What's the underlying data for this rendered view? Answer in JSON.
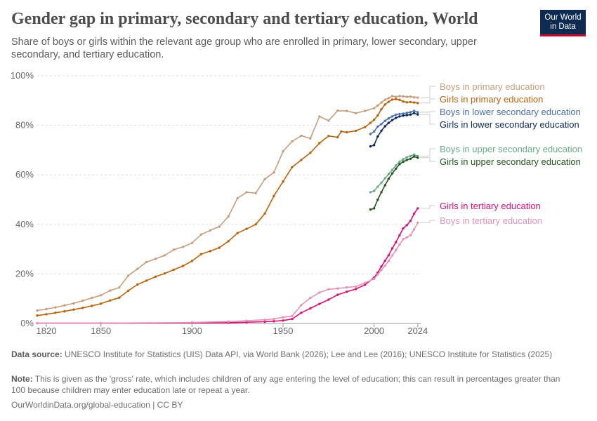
{
  "header": {
    "title": "Gender gap in primary, secondary and tertiary education, World",
    "subtitle": "Share of boys or girls within the relevant age group who are enrolled in primary, lower secondary, upper secondary, and tertiary education.",
    "logo_line1": "Our World",
    "logo_line2": "in Data"
  },
  "footer": {
    "source_label": "Data source:",
    "source_text": "UNESCO Institute for Statistics (UIS) Data API, via World Bank (2026); Lee and Lee (2016); UNESCO Institute for Statistics (2025)",
    "note_label": "Note:",
    "note_text": "This is given as the 'gross' rate, which includes children of any age entering the level of education; this can result in percentages greater than 100 because children may enter education late or repeat a year.",
    "url": "OurWorldinData.org/global-education | CC BY"
  },
  "colors": {
    "boys_primary": "#c69f7e",
    "girls_primary": "#b8640d",
    "boys_lower_secondary": "#4d6fa8",
    "girls_lower_secondary": "#0f2b5e",
    "boys_upper_secondary": "#6aaa8c",
    "girls_upper_secondary": "#24561e",
    "girls_tertiary": "#d6127a",
    "boys_tertiary": "#e295b5",
    "grid": "#dddddd",
    "axis_text": "#666666"
  },
  "chart_data": {
    "type": "line",
    "xlim": [
      1815,
      2026
    ],
    "ylim": [
      0,
      100
    ],
    "x_ticks": [
      "1820",
      "1850",
      "1900",
      "1950",
      "2000",
      "2024"
    ],
    "x_tick_values": [
      1820,
      1850,
      1900,
      1950,
      2000,
      2024
    ],
    "y_ticks": [
      "0%",
      "20%",
      "40%",
      "60%",
      "80%",
      "100%"
    ],
    "y_tick_values": [
      0,
      20,
      40,
      60,
      80,
      100
    ],
    "grid": "horizontal dashed",
    "legend": "right, end of lines",
    "series": [
      {
        "name": "Boys in primary education",
        "color_key": "boys_primary",
        "points": [
          [
            1815,
            5.2
          ],
          [
            1820,
            5.8
          ],
          [
            1825,
            6.5
          ],
          [
            1830,
            7.3
          ],
          [
            1835,
            8.1
          ],
          [
            1840,
            9.2
          ],
          [
            1845,
            10.3
          ],
          [
            1850,
            11.4
          ],
          [
            1855,
            13.3
          ],
          [
            1860,
            14.5
          ],
          [
            1865,
            19.3
          ],
          [
            1870,
            22.0
          ],
          [
            1875,
            24.8
          ],
          [
            1880,
            26.1
          ],
          [
            1885,
            27.5
          ],
          [
            1890,
            29.8
          ],
          [
            1895,
            30.9
          ],
          [
            1900,
            32.5
          ],
          [
            1905,
            35.9
          ],
          [
            1910,
            37.6
          ],
          [
            1915,
            39.1
          ],
          [
            1920,
            43.2
          ],
          [
            1925,
            50.6
          ],
          [
            1930,
            53.0
          ],
          [
            1935,
            52.6
          ],
          [
            1940,
            58.3
          ],
          [
            1945,
            61.0
          ],
          [
            1950,
            69.5
          ],
          [
            1955,
            73.5
          ],
          [
            1960,
            75.8
          ],
          [
            1965,
            74.7
          ],
          [
            1970,
            83.6
          ],
          [
            1975,
            81.9
          ],
          [
            1980,
            85.9
          ],
          [
            1985,
            85.8
          ],
          [
            1990,
            84.9
          ],
          [
            1995,
            85.8
          ],
          [
            2000,
            86.9
          ],
          [
            2002,
            88.0
          ],
          [
            2004,
            89.2
          ],
          [
            2006,
            90.3
          ],
          [
            2008,
            91.0
          ],
          [
            2010,
            91.8
          ],
          [
            2012,
            91.5
          ],
          [
            2014,
            91.8
          ],
          [
            2016,
            91.7
          ],
          [
            2018,
            91.5
          ],
          [
            2020,
            91.6
          ],
          [
            2022,
            91.3
          ],
          [
            2024,
            91.2
          ]
        ]
      },
      {
        "name": "Girls in primary education",
        "color_key": "girls_primary",
        "points": [
          [
            1815,
            3.2
          ],
          [
            1820,
            3.7
          ],
          [
            1825,
            4.3
          ],
          [
            1830,
            4.9
          ],
          [
            1835,
            5.6
          ],
          [
            1840,
            6.3
          ],
          [
            1845,
            7.1
          ],
          [
            1850,
            8.0
          ],
          [
            1855,
            9.3
          ],
          [
            1860,
            10.4
          ],
          [
            1865,
            13.2
          ],
          [
            1870,
            15.7
          ],
          [
            1875,
            17.3
          ],
          [
            1880,
            18.9
          ],
          [
            1885,
            20.2
          ],
          [
            1890,
            21.7
          ],
          [
            1895,
            23.2
          ],
          [
            1900,
            25.2
          ],
          [
            1905,
            28.0
          ],
          [
            1910,
            29.2
          ],
          [
            1915,
            30.6
          ],
          [
            1920,
            33.2
          ],
          [
            1925,
            36.5
          ],
          [
            1930,
            38.2
          ],
          [
            1935,
            40.0
          ],
          [
            1940,
            44.4
          ],
          [
            1945,
            51.5
          ],
          [
            1950,
            57.3
          ],
          [
            1955,
            63.1
          ],
          [
            1960,
            66.0
          ],
          [
            1965,
            68.9
          ],
          [
            1970,
            72.8
          ],
          [
            1975,
            75.7
          ],
          [
            1980,
            75.2
          ],
          [
            1982,
            77.5
          ],
          [
            1985,
            77.2
          ],
          [
            1990,
            77.8
          ],
          [
            1995,
            79.3
          ],
          [
            1998,
            81.0
          ],
          [
            2000,
            82.2
          ],
          [
            2002,
            84.0
          ],
          [
            2004,
            86.5
          ],
          [
            2006,
            88.4
          ],
          [
            2008,
            89.5
          ],
          [
            2010,
            90.4
          ],
          [
            2012,
            90.6
          ],
          [
            2014,
            90.3
          ],
          [
            2016,
            89.6
          ],
          [
            2018,
            89.3
          ],
          [
            2020,
            89.4
          ],
          [
            2022,
            89.2
          ],
          [
            2024,
            89.0
          ]
        ]
      },
      {
        "name": "Boys in lower secondary education",
        "color_key": "boys_lower_secondary",
        "points": [
          [
            1998,
            76.5
          ],
          [
            2000,
            77.5
          ],
          [
            2002,
            79.5
          ],
          [
            2004,
            80.5
          ],
          [
            2006,
            81.8
          ],
          [
            2008,
            82.8
          ],
          [
            2010,
            83.6
          ],
          [
            2012,
            84.3
          ],
          [
            2014,
            84.6
          ],
          [
            2016,
            84.7
          ],
          [
            2018,
            85.0
          ],
          [
            2020,
            85.3
          ],
          [
            2022,
            85.8
          ],
          [
            2024,
            85.3
          ]
        ]
      },
      {
        "name": "Girls in lower secondary education",
        "color_key": "girls_lower_secondary",
        "points": [
          [
            1998,
            71.5
          ],
          [
            2000,
            72.0
          ],
          [
            2002,
            75.5
          ],
          [
            2004,
            77.8
          ],
          [
            2006,
            79.6
          ],
          [
            2008,
            81.0
          ],
          [
            2010,
            82.1
          ],
          [
            2012,
            83.0
          ],
          [
            2014,
            83.6
          ],
          [
            2016,
            83.9
          ],
          [
            2018,
            84.1
          ],
          [
            2020,
            84.3
          ],
          [
            2022,
            84.9
          ],
          [
            2024,
            84.4
          ]
        ]
      },
      {
        "name": "Boys in upper secondary education",
        "color_key": "boys_upper_secondary",
        "points": [
          [
            1998,
            53.0
          ],
          [
            2000,
            53.5
          ],
          [
            2002,
            55.2
          ],
          [
            2004,
            56.8
          ],
          [
            2006,
            58.6
          ],
          [
            2008,
            60.3
          ],
          [
            2010,
            62.0
          ],
          [
            2012,
            63.8
          ],
          [
            2014,
            65.3
          ],
          [
            2016,
            66.3
          ],
          [
            2018,
            67.1
          ],
          [
            2020,
            67.6
          ],
          [
            2022,
            68.2
          ],
          [
            2024,
            67.6
          ]
        ]
      },
      {
        "name": "Girls in upper secondary education",
        "color_key": "girls_upper_secondary",
        "points": [
          [
            1998,
            46.0
          ],
          [
            2000,
            46.5
          ],
          [
            2002,
            50.0
          ],
          [
            2004,
            53.0
          ],
          [
            2006,
            55.8
          ],
          [
            2008,
            58.4
          ],
          [
            2010,
            60.6
          ],
          [
            2012,
            62.5
          ],
          [
            2014,
            64.3
          ],
          [
            2016,
            65.3
          ],
          [
            2018,
            66.0
          ],
          [
            2020,
            66.5
          ],
          [
            2022,
            67.4
          ],
          [
            2024,
            66.9
          ]
        ]
      },
      {
        "name": "Girls in tertiary education",
        "color_key": "girls_tertiary",
        "points": [
          [
            1815,
            0.1
          ],
          [
            1850,
            0.1
          ],
          [
            1900,
            0.2
          ],
          [
            1920,
            0.3
          ],
          [
            1930,
            0.5
          ],
          [
            1940,
            0.7
          ],
          [
            1945,
            0.9
          ],
          [
            1950,
            1.2
          ],
          [
            1955,
            1.8
          ],
          [
            1960,
            4.3
          ],
          [
            1965,
            6.1
          ],
          [
            1970,
            7.9
          ],
          [
            1975,
            9.6
          ],
          [
            1980,
            11.6
          ],
          [
            1985,
            12.8
          ],
          [
            1990,
            13.9
          ],
          [
            1995,
            15.6
          ],
          [
            2000,
            18.5
          ],
          [
            2002,
            20.5
          ],
          [
            2004,
            23.0
          ],
          [
            2006,
            25.3
          ],
          [
            2008,
            27.5
          ],
          [
            2010,
            30.3
          ],
          [
            2012,
            32.8
          ],
          [
            2014,
            35.6
          ],
          [
            2016,
            38.4
          ],
          [
            2018,
            39.7
          ],
          [
            2020,
            41.4
          ],
          [
            2022,
            44.3
          ],
          [
            2024,
            46.5
          ]
        ]
      },
      {
        "name": "Boys in tertiary education",
        "color_key": "boys_tertiary",
        "points": [
          [
            1815,
            0.1
          ],
          [
            1850,
            0.1
          ],
          [
            1900,
            0.4
          ],
          [
            1920,
            0.8
          ],
          [
            1930,
            1.1
          ],
          [
            1940,
            1.5
          ],
          [
            1945,
            1.8
          ],
          [
            1950,
            2.5
          ],
          [
            1955,
            3.0
          ],
          [
            1960,
            7.4
          ],
          [
            1965,
            10.3
          ],
          [
            1970,
            12.5
          ],
          [
            1975,
            13.8
          ],
          [
            1980,
            14.1
          ],
          [
            1985,
            14.6
          ],
          [
            1990,
            14.9
          ],
          [
            1995,
            16.4
          ],
          [
            2000,
            18.0
          ],
          [
            2002,
            19.8
          ],
          [
            2004,
            21.6
          ],
          [
            2006,
            23.3
          ],
          [
            2008,
            25.2
          ],
          [
            2010,
            27.5
          ],
          [
            2012,
            29.6
          ],
          [
            2014,
            31.9
          ],
          [
            2016,
            34.0
          ],
          [
            2018,
            34.8
          ],
          [
            2020,
            35.6
          ],
          [
            2022,
            38.0
          ],
          [
            2024,
            40.7
          ]
        ]
      }
    ]
  }
}
